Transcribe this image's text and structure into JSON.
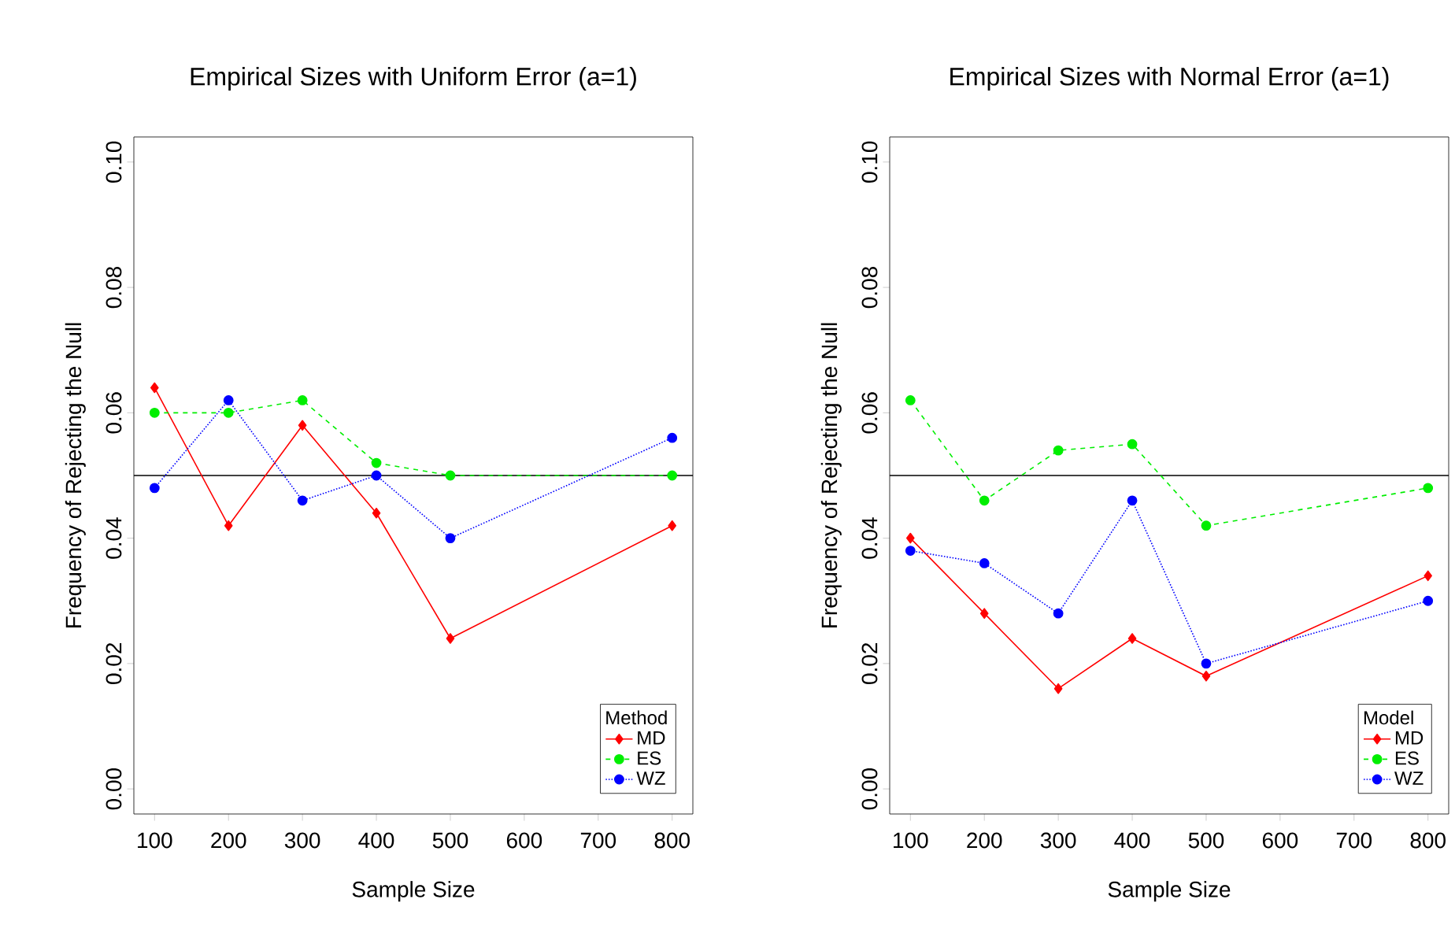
{
  "chart_data": [
    {
      "type": "line",
      "title": "Empirical Sizes with Uniform Error (a=1)",
      "xlabel": "Sample Size",
      "ylabel": "Frequency of Rejecting the Null",
      "legend_title": "Method",
      "legend": "bottom right",
      "grid": false,
      "x": [
        100,
        200,
        300,
        400,
        500,
        800
      ],
      "xlim": [
        72,
        828
      ],
      "ylim": [
        -0.004,
        0.104
      ],
      "xticks": [
        100,
        200,
        300,
        400,
        500,
        600,
        700,
        800
      ],
      "yticks": [
        {
          "value": 0,
          "label": "0.00"
        },
        {
          "value": 0.02,
          "label": "0.02"
        },
        {
          "value": 0.04,
          "label": "0.04"
        },
        {
          "value": 0.06,
          "label": "0.06"
        },
        {
          "value": 0.08,
          "label": "0.08"
        },
        {
          "value": 0.1,
          "label": "0.10"
        }
      ],
      "ref_lines": [
        {
          "axis": "y",
          "value": 0.05,
          "color": "#000000"
        }
      ],
      "series": [
        {
          "name": "MD",
          "color": "#ff0000",
          "marker": "diamond",
          "line_style": "solid",
          "values": [
            0.064,
            0.042,
            0.058,
            0.044,
            0.024,
            0.042
          ]
        },
        {
          "name": "ES",
          "color": "#00ee00",
          "marker": "circle",
          "line_style": "dashed",
          "values": [
            0.06,
            0.06,
            0.062,
            0.052,
            0.05,
            0.05
          ]
        },
        {
          "name": "WZ",
          "color": "#0000ff",
          "marker": "circle",
          "line_style": "dotted",
          "values": [
            0.048,
            0.062,
            0.046,
            0.05,
            0.04,
            0.056
          ]
        }
      ]
    },
    {
      "type": "line",
      "title": "Empirical Sizes with Normal Error (a=1)",
      "xlabel": "Sample Size",
      "ylabel": "Frequency of Rejecting the Null",
      "legend_title": "Model",
      "legend": "bottom right",
      "grid": false,
      "x": [
        100,
        200,
        300,
        400,
        500,
        800
      ],
      "xlim": [
        72,
        828
      ],
      "ylim": [
        -0.004,
        0.104
      ],
      "xticks": [
        100,
        200,
        300,
        400,
        500,
        600,
        700,
        800
      ],
      "yticks": [
        {
          "value": 0,
          "label": "0.00"
        },
        {
          "value": 0.02,
          "label": "0.02"
        },
        {
          "value": 0.04,
          "label": "0.04"
        },
        {
          "value": 0.06,
          "label": "0.06"
        },
        {
          "value": 0.08,
          "label": "0.08"
        },
        {
          "value": 0.1,
          "label": "0.10"
        }
      ],
      "ref_lines": [
        {
          "axis": "y",
          "value": 0.05,
          "color": "#000000"
        }
      ],
      "series": [
        {
          "name": "MD",
          "color": "#ff0000",
          "marker": "diamond",
          "line_style": "solid",
          "values": [
            0.04,
            0.028,
            0.016,
            0.024,
            0.018,
            0.034
          ]
        },
        {
          "name": "ES",
          "color": "#00ee00",
          "marker": "circle",
          "line_style": "dashed",
          "values": [
            0.062,
            0.046,
            0.054,
            0.055,
            0.042,
            0.048
          ]
        },
        {
          "name": "WZ",
          "color": "#0000ff",
          "marker": "circle",
          "line_style": "dotted",
          "values": [
            0.038,
            0.036,
            0.028,
            0.046,
            0.02,
            0.03
          ]
        }
      ]
    }
  ]
}
